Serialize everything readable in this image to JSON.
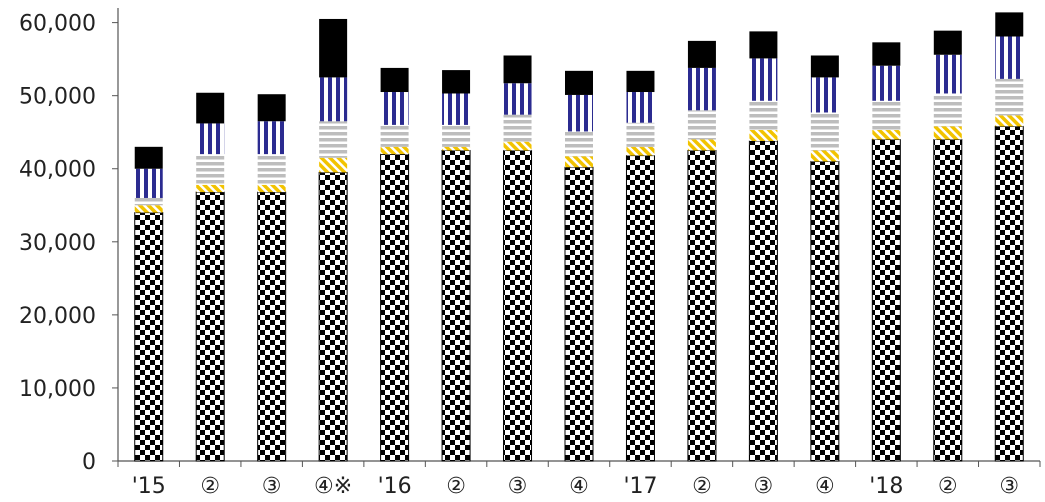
{
  "chart_data": {
    "type": "bar",
    "stacked": true,
    "categories": [
      "'15",
      "②",
      "③",
      "④※",
      "'16",
      "②",
      "③",
      "④",
      "'17",
      "②",
      "③",
      "④",
      "'18",
      "②",
      "③"
    ],
    "y_ticks": [
      "0",
      "10,000",
      "20,000",
      "30,000",
      "40,000",
      "50,000",
      "60,000"
    ],
    "ylim": [
      0,
      62000
    ],
    "grid": false,
    "legend": "none",
    "series": [
      {
        "pattern": "checker",
        "colors": [
          "#000000",
          "#ffffff"
        ],
        "values": [
          34000,
          36800,
          36800,
          39500,
          42000,
          42500,
          42500,
          40200,
          41800,
          42500,
          43800,
          41000,
          44000,
          44000,
          45800
        ]
      },
      {
        "pattern": "diagonal",
        "colors": [
          "#f2c300",
          "#ffffff"
        ],
        "values": [
          1000,
          1000,
          1000,
          2000,
          1000,
          500,
          1200,
          1500,
          1200,
          1500,
          1500,
          1500,
          1300,
          1800,
          1500
        ]
      },
      {
        "pattern": "hstripe",
        "colors": [
          "#bdbdbd",
          "#ffffff"
        ],
        "values": [
          1000,
          4200,
          4200,
          5000,
          3000,
          3000,
          3700,
          3400,
          3300,
          4000,
          4000,
          5200,
          4000,
          4500,
          5000
        ]
      },
      {
        "pattern": "vstripe",
        "colors": [
          "#2b2b90",
          "#ffffff"
        ],
        "values": [
          4000,
          4200,
          4500,
          6000,
          4500,
          4300,
          4300,
          5000,
          4200,
          5800,
          5800,
          4800,
          4800,
          5300,
          5800
        ]
      },
      {
        "pattern": "solid",
        "colors": [
          "#000000"
        ],
        "values": [
          3000,
          4200,
          3700,
          8000,
          3300,
          3200,
          3800,
          3300,
          2900,
          3700,
          3700,
          3000,
          3200,
          3300,
          3300
        ]
      }
    ]
  }
}
